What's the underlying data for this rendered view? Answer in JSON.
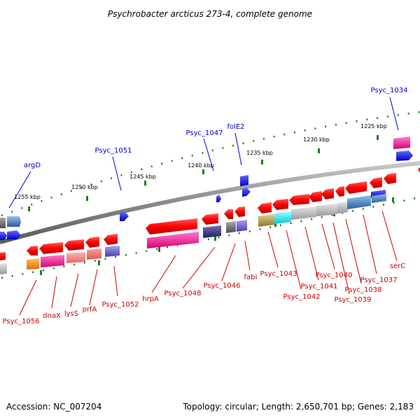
{
  "title": "Psychrobacter arcticus 273-4, complete genome",
  "accession": "Accession: NC_007204",
  "topology": "Topology: circular; Length: 2,650,701 bp; Genes: 2,183",
  "colors": {
    "backbone": "#8c8c8c",
    "tick": "#1f7a1f",
    "forward_label": "#0000cc",
    "reverse_label": "#cc0000",
    "rrna": "#0000ff"
  },
  "kbp_labels": [
    "1225 kbp",
    "1230 kbp",
    "1235 kbp",
    "1240 kbp",
    "1245 kbp",
    "1250 kbp",
    "1255 kbp"
  ],
  "forward_labels": [
    "Psyc_1034",
    "folE2",
    "Psyc_1047",
    "Psyc_1051",
    "argD"
  ],
  "reverse_labels": [
    "Psyc_1056",
    "dnaX",
    "lysS",
    "prfA",
    "Psyc_1052",
    "hrpA",
    "Psyc_1048",
    "Psyc_1046",
    "fabI",
    "Psyc_1043",
    "Psyc_1042",
    "Psyc_1041",
    "Psyc_1040",
    "Psyc_1039",
    "Psyc_1038",
    "Psyc_1037",
    "serC"
  ]
}
